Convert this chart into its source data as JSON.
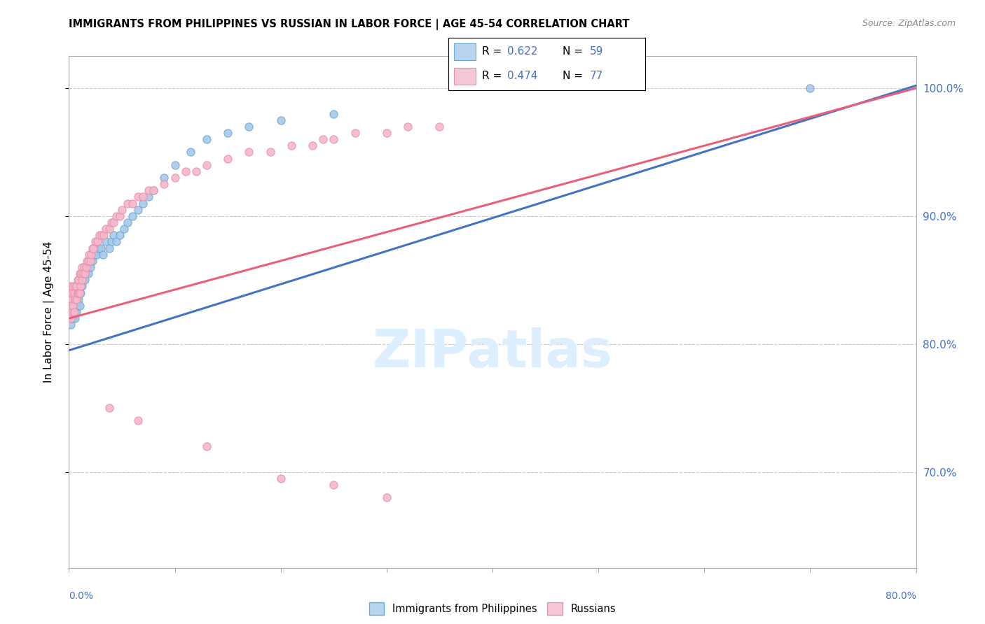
{
  "title": "IMMIGRANTS FROM PHILIPPINES VS RUSSIAN IN LABOR FORCE | AGE 45-54 CORRELATION CHART",
  "source": "Source: ZipAtlas.com",
  "ylabel": "In Labor Force | Age 45-54",
  "yaxis_labels": [
    "70.0%",
    "80.0%",
    "90.0%",
    "100.0%"
  ],
  "yaxis_values": [
    0.7,
    0.8,
    0.9,
    1.0
  ],
  "xlim": [
    0.0,
    0.8
  ],
  "ylim": [
    0.625,
    1.025
  ],
  "philippines_R": 0.622,
  "philippines_N": 59,
  "russian_R": 0.474,
  "russian_N": 77,
  "philippines_color": "#a8c8e8",
  "philippines_edge": "#6aaad4",
  "russian_color": "#f4b8cc",
  "russian_edge": "#e890aa",
  "blue_line_color": "#4472c4",
  "pink_line_color": "#e8607a",
  "watermark_color": "#ddeeff",
  "legend_blue_fill": "#b8d4ee",
  "legend_pink_fill": "#f4c8d8",
  "philippines_x": [
    0.001,
    0.001,
    0.002,
    0.002,
    0.003,
    0.003,
    0.004,
    0.004,
    0.005,
    0.005,
    0.006,
    0.006,
    0.007,
    0.007,
    0.008,
    0.008,
    0.009,
    0.009,
    0.01,
    0.01,
    0.011,
    0.011,
    0.012,
    0.013,
    0.014,
    0.015,
    0.016,
    0.017,
    0.018,
    0.019,
    0.02,
    0.022,
    0.024,
    0.026,
    0.028,
    0.03,
    0.032,
    0.035,
    0.038,
    0.04,
    0.042,
    0.045,
    0.048,
    0.052,
    0.055,
    0.06,
    0.065,
    0.07,
    0.075,
    0.08,
    0.09,
    0.1,
    0.115,
    0.13,
    0.15,
    0.17,
    0.2,
    0.25,
    0.7
  ],
  "philippines_y": [
    0.82,
    0.825,
    0.815,
    0.83,
    0.82,
    0.835,
    0.82,
    0.83,
    0.825,
    0.835,
    0.82,
    0.84,
    0.825,
    0.835,
    0.83,
    0.845,
    0.835,
    0.84,
    0.83,
    0.845,
    0.84,
    0.85,
    0.845,
    0.85,
    0.855,
    0.85,
    0.855,
    0.86,
    0.855,
    0.865,
    0.86,
    0.865,
    0.87,
    0.87,
    0.875,
    0.875,
    0.87,
    0.88,
    0.875,
    0.88,
    0.885,
    0.88,
    0.885,
    0.89,
    0.895,
    0.9,
    0.905,
    0.91,
    0.915,
    0.92,
    0.93,
    0.94,
    0.95,
    0.96,
    0.965,
    0.97,
    0.975,
    0.98,
    1.0
  ],
  "russian_x": [
    0.001,
    0.001,
    0.001,
    0.002,
    0.002,
    0.002,
    0.003,
    0.003,
    0.004,
    0.004,
    0.005,
    0.005,
    0.006,
    0.006,
    0.007,
    0.007,
    0.008,
    0.008,
    0.009,
    0.009,
    0.01,
    0.01,
    0.011,
    0.011,
    0.012,
    0.012,
    0.013,
    0.014,
    0.015,
    0.016,
    0.017,
    0.018,
    0.019,
    0.02,
    0.021,
    0.022,
    0.023,
    0.025,
    0.027,
    0.029,
    0.031,
    0.033,
    0.035,
    0.038,
    0.04,
    0.042,
    0.045,
    0.048,
    0.05,
    0.055,
    0.06,
    0.065,
    0.07,
    0.075,
    0.08,
    0.09,
    0.1,
    0.11,
    0.12,
    0.13,
    0.15,
    0.17,
    0.19,
    0.21,
    0.23,
    0.24,
    0.25,
    0.27,
    0.3,
    0.32,
    0.35,
    0.038,
    0.065,
    0.13,
    0.2,
    0.25,
    0.3
  ],
  "russian_y": [
    0.825,
    0.835,
    0.845,
    0.82,
    0.83,
    0.84,
    0.825,
    0.84,
    0.83,
    0.845,
    0.825,
    0.84,
    0.835,
    0.845,
    0.835,
    0.845,
    0.84,
    0.85,
    0.84,
    0.85,
    0.84,
    0.855,
    0.845,
    0.855,
    0.85,
    0.86,
    0.855,
    0.86,
    0.855,
    0.86,
    0.865,
    0.865,
    0.87,
    0.865,
    0.87,
    0.875,
    0.875,
    0.88,
    0.88,
    0.885,
    0.885,
    0.885,
    0.89,
    0.89,
    0.895,
    0.895,
    0.9,
    0.9,
    0.905,
    0.91,
    0.91,
    0.915,
    0.915,
    0.92,
    0.92,
    0.925,
    0.93,
    0.935,
    0.935,
    0.94,
    0.945,
    0.95,
    0.95,
    0.955,
    0.955,
    0.96,
    0.96,
    0.965,
    0.965,
    0.97,
    0.97,
    0.75,
    0.74,
    0.72,
    0.695,
    0.69,
    0.68
  ],
  "phil_trendline_x": [
    0.0,
    0.8
  ],
  "phil_trendline_y": [
    0.795,
    1.002
  ],
  "rus_trendline_x": [
    0.0,
    0.8
  ],
  "rus_trendline_y": [
    0.82,
    1.0
  ]
}
